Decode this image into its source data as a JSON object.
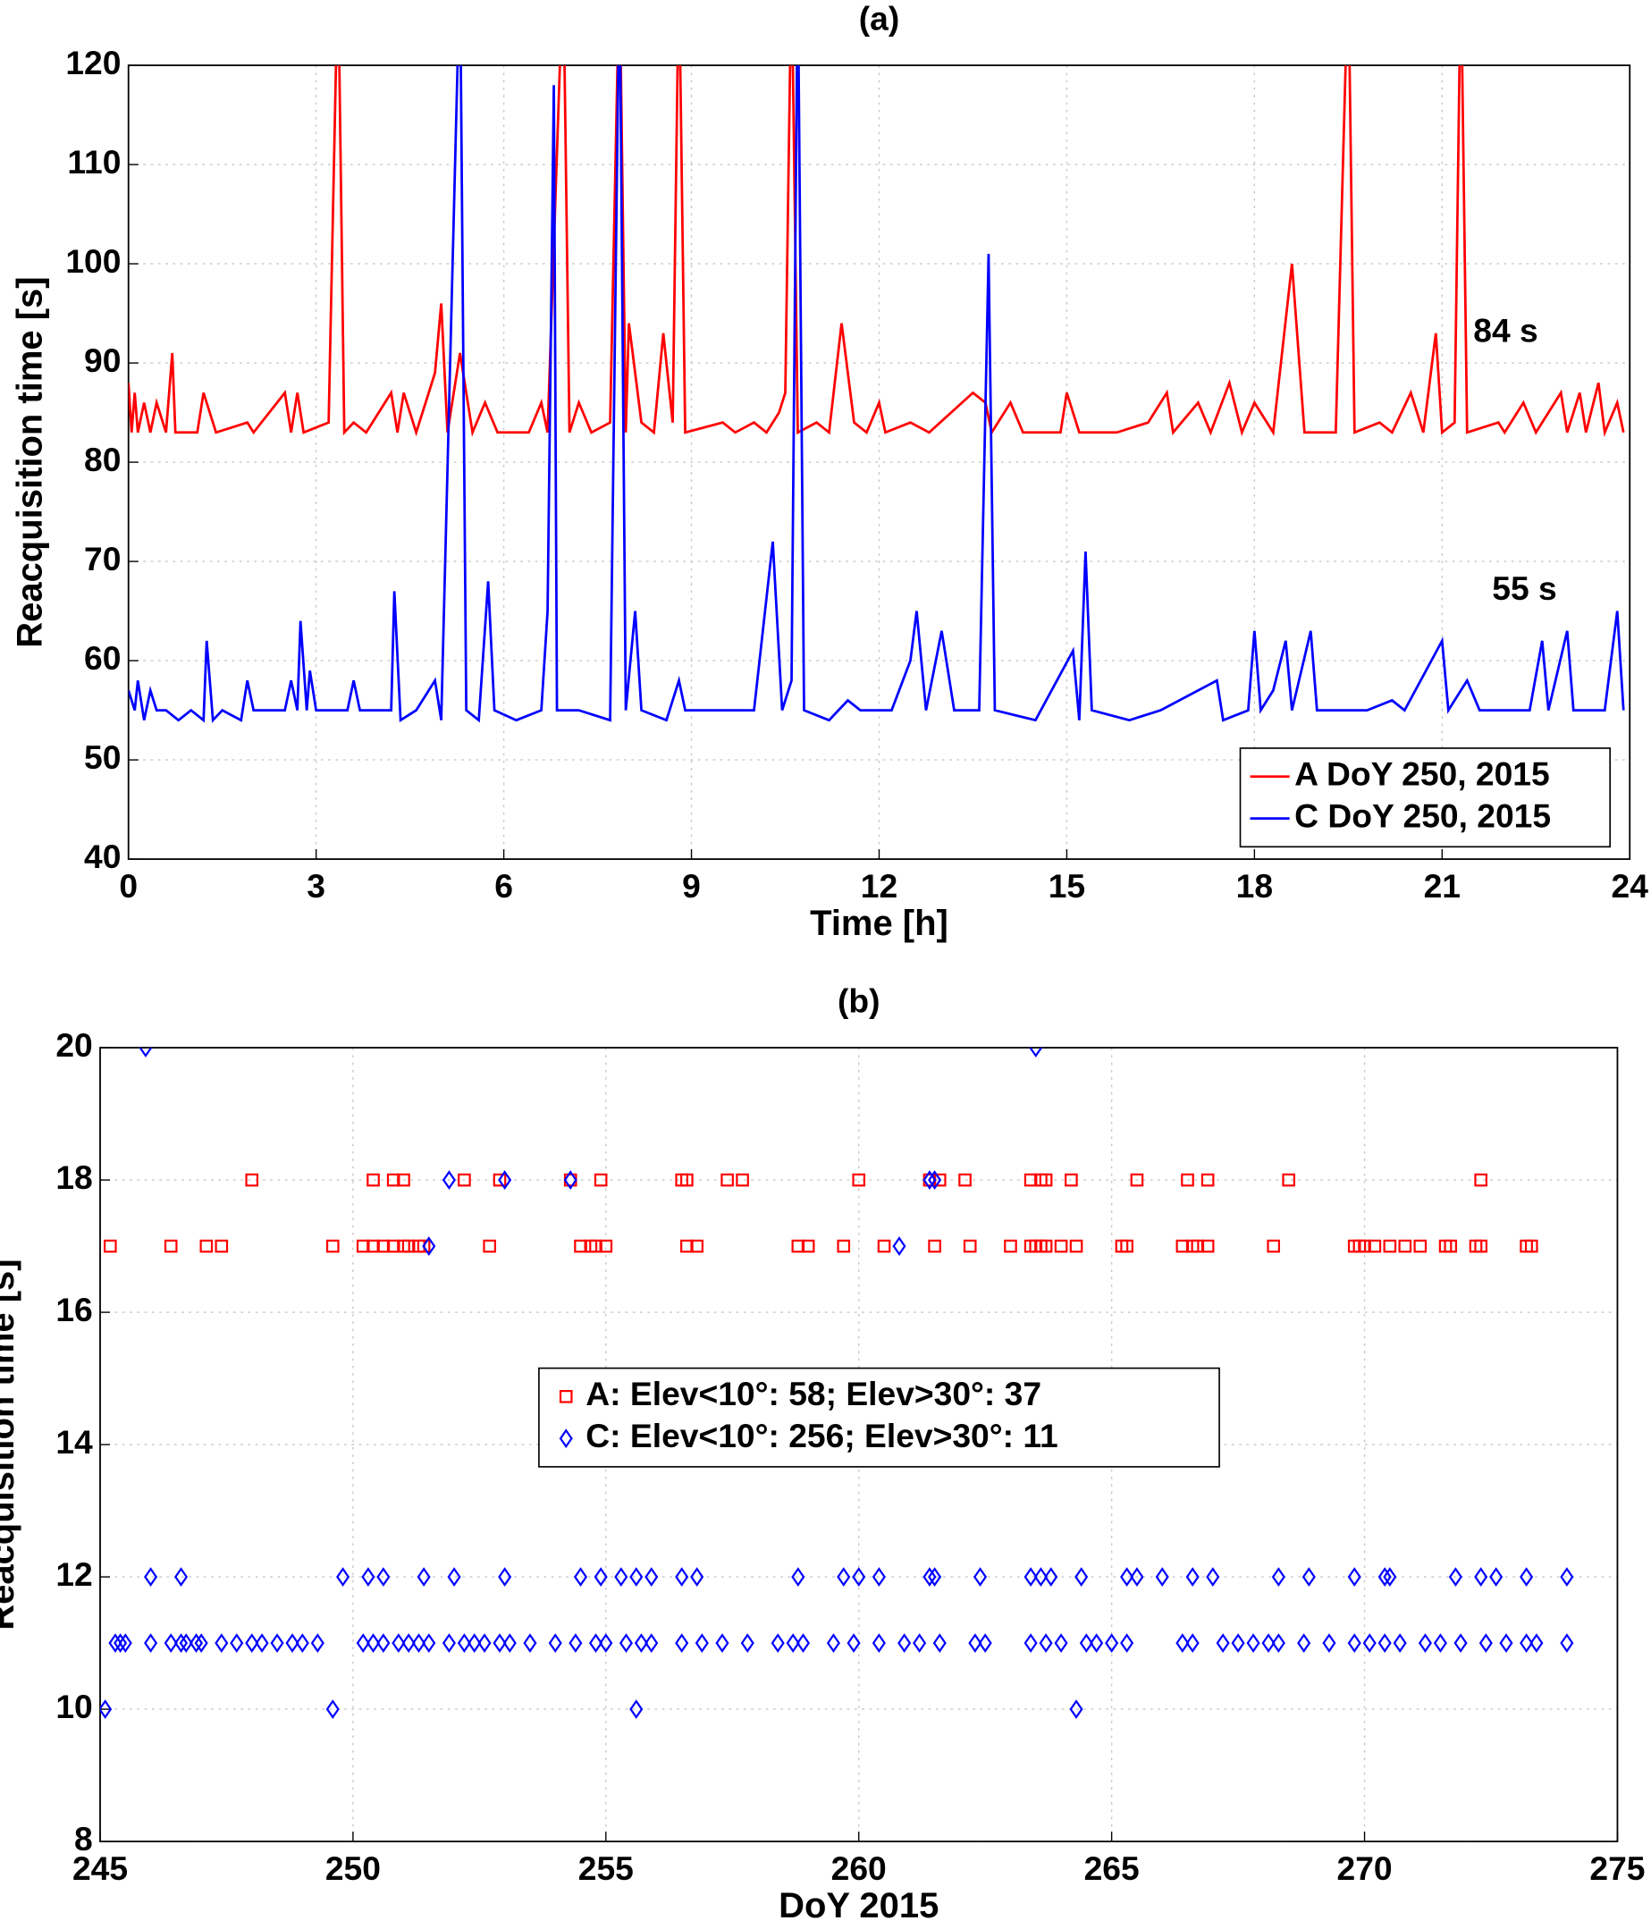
{
  "chart_data": [
    {
      "type": "line",
      "title": "(a)",
      "xlabel": "Time [h]",
      "ylabel": "Reacquisition time [s]",
      "xlim": [
        0,
        24
      ],
      "ylim": [
        40,
        120
      ],
      "xticks": [
        0,
        3,
        6,
        9,
        12,
        15,
        18,
        21,
        24
      ],
      "yticks": [
        40,
        50,
        60,
        70,
        80,
        90,
        100,
        110,
        120
      ],
      "grid": true,
      "legend": "lower right",
      "annotations": [
        {
          "text": "84 s",
          "x": 21.5,
          "y": 93,
          "color": "#ff0000"
        },
        {
          "text": "55 s",
          "x": 21.8,
          "y": 67,
          "color": "#0000ff"
        }
      ],
      "series": [
        {
          "name": "A DoY 250, 2015",
          "color": "#ff0000",
          "x": [
            0,
            0.05,
            0.1,
            0.15,
            0.25,
            0.35,
            0.45,
            0.6,
            0.7,
            0.75,
            1.1,
            1.2,
            1.4,
            1.9,
            2.0,
            2.5,
            2.6,
            2.7,
            2.8,
            3.2,
            3.35,
            3.45,
            3.6,
            3.8,
            4.2,
            4.3,
            4.4,
            4.6,
            4.9,
            5.0,
            5.1,
            5.3,
            5.5,
            5.7,
            5.9,
            6.4,
            6.6,
            6.7,
            6.95,
            7.05,
            7.2,
            7.4,
            7.7,
            7.85,
            7.95,
            8.0,
            8.2,
            8.4,
            8.55,
            8.7,
            8.8,
            8.9,
            9.5,
            9.7,
            10.0,
            10.2,
            10.4,
            10.5,
            10.6,
            10.7,
            11.0,
            11.2,
            11.4,
            11.6,
            11.8,
            12.0,
            12.1,
            12.5,
            12.8,
            13.5,
            13.7,
            13.8,
            14.1,
            14.3,
            14.9,
            15.0,
            15.2,
            15.8,
            16.3,
            16.6,
            16.7,
            17.1,
            17.3,
            17.6,
            17.8,
            18.0,
            18.3,
            18.6,
            18.8,
            19.3,
            19.5,
            19.6,
            20.0,
            20.2,
            20.5,
            20.7,
            20.9,
            21.0,
            21.2,
            21.3,
            21.4,
            21.9,
            22.0,
            22.3,
            22.5,
            22.9,
            23.0,
            23.2,
            23.3,
            23.5,
            23.6,
            23.8,
            23.9
          ],
          "values": [
            88,
            83,
            87,
            83,
            86,
            83,
            86,
            83,
            91,
            83,
            83,
            87,
            83,
            84,
            83,
            87,
            83,
            87,
            83,
            84,
            130,
            83,
            84,
            83,
            87,
            83,
            87,
            83,
            89,
            96,
            83,
            91,
            83,
            86,
            83,
            83,
            86,
            83,
            130,
            83,
            86,
            83,
            84,
            130,
            83,
            94,
            84,
            83,
            93,
            84,
            130,
            83,
            84,
            83,
            84,
            83,
            85,
            87,
            130,
            83,
            84,
            83,
            94,
            84,
            83,
            86,
            83,
            84,
            83,
            87,
            86,
            83,
            86,
            83,
            83,
            87,
            83,
            83,
            84,
            87,
            83,
            86,
            83,
            88,
            83,
            86,
            83,
            100,
            83,
            83,
            130,
            83,
            84,
            83,
            87,
            83,
            93,
            83,
            84,
            130,
            83,
            84,
            83,
            86,
            83,
            87,
            83,
            87,
            83,
            88,
            83,
            86,
            83
          ]
        },
        {
          "name": "C DoY 250, 2015",
          "color": "#0000ff",
          "x": [
            0,
            0.1,
            0.15,
            0.25,
            0.35,
            0.45,
            0.6,
            0.8,
            1.0,
            1.2,
            1.25,
            1.35,
            1.5,
            1.8,
            1.9,
            2.0,
            2.5,
            2.6,
            2.7,
            2.75,
            2.85,
            2.9,
            3.0,
            3.5,
            3.6,
            3.7,
            4.2,
            4.25,
            4.35,
            4.6,
            4.9,
            5.0,
            5.3,
            5.4,
            5.6,
            5.75,
            5.85,
            6.2,
            6.6,
            6.7,
            6.8,
            6.85,
            7.2,
            7.7,
            7.85,
            7.95,
            8.1,
            8.2,
            8.6,
            8.8,
            8.9,
            9.6,
            10.0,
            10.3,
            10.45,
            10.6,
            10.7,
            10.8,
            11.2,
            11.5,
            11.7,
            12.2,
            12.5,
            12.6,
            12.75,
            13.0,
            13.2,
            13.6,
            13.75,
            13.85,
            14.5,
            15.1,
            15.2,
            15.3,
            15.4,
            16.0,
            16.5,
            17.4,
            17.5,
            17.9,
            18.0,
            18.1,
            18.3,
            18.5,
            18.6,
            18.9,
            19.0,
            19.8,
            20.2,
            20.4,
            21.0,
            21.1,
            21.4,
            21.6,
            22.4,
            22.6,
            22.7,
            23.0,
            23.1,
            23.6,
            23.8,
            23.9
          ],
          "values": [
            57,
            55,
            58,
            54,
            57,
            55,
            55,
            54,
            55,
            54,
            62,
            54,
            55,
            54,
            58,
            55,
            55,
            58,
            55,
            64,
            55,
            59,
            55,
            55,
            58,
            55,
            55,
            67,
            54,
            55,
            58,
            54,
            130,
            55,
            54,
            68,
            55,
            54,
            55,
            65,
            118,
            55,
            55,
            54,
            130,
            55,
            65,
            55,
            54,
            58,
            55,
            55,
            55,
            72,
            55,
            58,
            130,
            55,
            54,
            56,
            55,
            55,
            60,
            65,
            55,
            63,
            55,
            55,
            101,
            55,
            54,
            61,
            54,
            71,
            55,
            54,
            55,
            58,
            54,
            55,
            63,
            55,
            57,
            62,
            55,
            63,
            55,
            55,
            56,
            55,
            62,
            55,
            58,
            55,
            55,
            62,
            55,
            63,
            55,
            55,
            65,
            55
          ]
        }
      ]
    },
    {
      "type": "scatter",
      "title": "(b)",
      "xlabel": "DoY 2015",
      "ylabel": "Reacquisition time [s]",
      "xlim": [
        245,
        275
      ],
      "ylim": [
        8,
        20
      ],
      "xticks": [
        245,
        250,
        255,
        260,
        265,
        270,
        275
      ],
      "yticks": [
        8,
        10,
        12,
        14,
        16,
        18,
        20
      ],
      "grid": true,
      "legend": "center",
      "series": [
        {
          "name": "A: Elev<10°:  58;  Elev>30°: 37",
          "color": "#ff0000",
          "marker": "square",
          "x": [
            245.2,
            246.4,
            247.1,
            247.4,
            249.6,
            250.2,
            250.4,
            250.6,
            250.8,
            251.0,
            251.1,
            251.3,
            251.4,
            252.7,
            254.5,
            254.7,
            254.8,
            255.0,
            256.6,
            256.8,
            258.8,
            259.0,
            259.7,
            260.5,
            261.5,
            262.2,
            263.0,
            263.4,
            263.5,
            263.6,
            263.7,
            264.0,
            264.3,
            265.2,
            265.3,
            266.4,
            266.6,
            266.7,
            266.9,
            268.2,
            269.8,
            269.9,
            270.0,
            270.2,
            270.5,
            270.8,
            271.1,
            271.6,
            271.7,
            272.2,
            272.3,
            273.2,
            273.3,
            248.0,
            250.4,
            250.8,
            251.0,
            252.2,
            252.9,
            254.3,
            254.9,
            256.5,
            256.6,
            257.4,
            257.7,
            260.0,
            261.4,
            261.6,
            262.1,
            263.4,
            263.6,
            263.7,
            264.2,
            265.5,
            266.5,
            266.9,
            268.5,
            272.3
          ],
          "values": [
            17,
            17,
            17,
            17,
            17,
            17,
            17,
            17,
            17,
            17,
            17,
            17,
            17,
            17,
            17,
            17,
            17,
            17,
            17,
            17,
            17,
            17,
            17,
            17,
            17,
            17,
            17,
            17,
            17,
            17,
            17,
            17,
            17,
            17,
            17,
            17,
            17,
            17,
            17,
            17,
            17,
            17,
            17,
            17,
            17,
            17,
            17,
            17,
            17,
            17,
            17,
            17,
            17,
            18,
            18,
            18,
            18,
            18,
            18,
            18,
            18,
            18,
            18,
            18,
            18,
            18,
            18,
            18,
            18,
            18,
            18,
            18,
            18,
            18,
            18,
            18,
            18,
            18
          ]
        },
        {
          "name": "C: Elev<10°: 256; Elev>30°: 11",
          "color": "#0000ff",
          "marker": "diamond",
          "x": [
            245.3,
            245.4,
            245.5,
            246.0,
            246.4,
            246.6,
            246.7,
            246.9,
            247.0,
            247.4,
            247.7,
            248.0,
            248.2,
            248.5,
            248.8,
            249.0,
            249.3,
            250.2,
            250.4,
            250.6,
            250.9,
            251.1,
            251.3,
            251.5,
            251.9,
            252.2,
            252.4,
            252.6,
            252.9,
            253.1,
            253.5,
            254.0,
            254.4,
            254.8,
            255.0,
            255.4,
            255.7,
            255.9,
            256.5,
            256.9,
            257.3,
            257.8,
            258.4,
            258.7,
            258.9,
            259.5,
            259.9,
            260.4,
            260.9,
            261.2,
            261.6,
            262.3,
            262.5,
            263.4,
            263.7,
            264.0,
            264.5,
            264.7,
            265.0,
            265.3,
            266.4,
            266.6,
            267.2,
            267.5,
            267.8,
            268.1,
            268.3,
            268.8,
            269.3,
            269.8,
            270.1,
            270.4,
            270.7,
            271.2,
            271.5,
            271.9,
            272.4,
            272.8,
            273.2,
            273.4,
            274.0,
            246.0,
            246.6,
            249.8,
            250.3,
            250.6,
            251.4,
            252.0,
            253.0,
            254.5,
            254.9,
            255.3,
            255.6,
            255.9,
            256.5,
            256.8,
            258.8,
            259.7,
            260.0,
            260.4,
            261.4,
            261.5,
            262.4,
            263.4,
            263.6,
            263.8,
            264.4,
            265.3,
            265.5,
            266.0,
            266.6,
            267.0,
            268.3,
            268.9,
            269.8,
            270.4,
            270.5,
            271.8,
            272.3,
            272.6,
            273.2,
            274.0,
            245.1,
            249.6,
            255.6,
            264.3,
            251.5,
            260.8,
            251.9,
            253.0,
            254.3,
            261.4,
            261.5,
            245.9,
            263.5
          ],
          "values": [
            11,
            11,
            11,
            11,
            11,
            11,
            11,
            11,
            11,
            11,
            11,
            11,
            11,
            11,
            11,
            11,
            11,
            11,
            11,
            11,
            11,
            11,
            11,
            11,
            11,
            11,
            11,
            11,
            11,
            11,
            11,
            11,
            11,
            11,
            11,
            11,
            11,
            11,
            11,
            11,
            11,
            11,
            11,
            11,
            11,
            11,
            11,
            11,
            11,
            11,
            11,
            11,
            11,
            11,
            11,
            11,
            11,
            11,
            11,
            11,
            11,
            11,
            11,
            11,
            11,
            11,
            11,
            11,
            11,
            11,
            11,
            11,
            11,
            11,
            11,
            11,
            11,
            11,
            11,
            11,
            11,
            12,
            12,
            12,
            12,
            12,
            12,
            12,
            12,
            12,
            12,
            12,
            12,
            12,
            12,
            12,
            12,
            12,
            12,
            12,
            12,
            12,
            12,
            12,
            12,
            12,
            12,
            12,
            12,
            12,
            12,
            12,
            12,
            12,
            12,
            12,
            12,
            12,
            12,
            12,
            12,
            12,
            10,
            10,
            10,
            10,
            17,
            17,
            18,
            18,
            18,
            18,
            18,
            20,
            20
          ]
        }
      ]
    }
  ]
}
